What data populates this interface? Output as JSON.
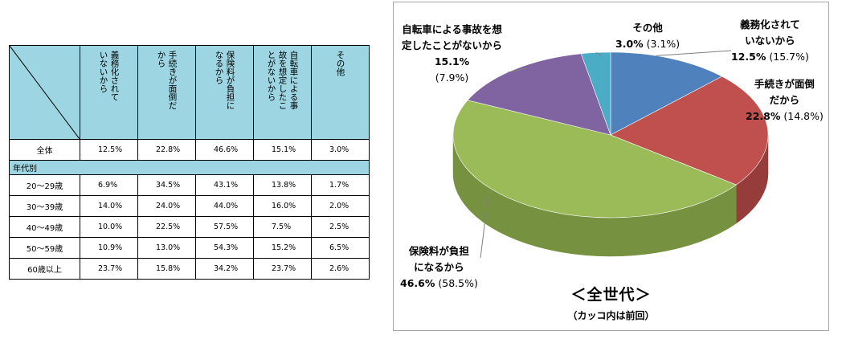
{
  "table": {
    "headers": [
      "義務化されていないから",
      "手続きが面倒だから",
      "保険料が負担になるから",
      "自転車による事故を想定したことがないから",
      "その他"
    ],
    "header_lines": [
      "義務化されて\nいないから",
      "手続きが面倒だ\nから",
      "保険料が負担に\nなるから",
      "自転車による事\n故を想定したこ\nとがないから",
      "その他"
    ],
    "total_row": {
      "label": "全体",
      "values": [
        "12.5%",
        "22.8%",
        "46.6%",
        "15.1%",
        "3.0%"
      ]
    },
    "section_label": "年代別",
    "rows": [
      {
        "label": "20～29歳",
        "values": [
          "6.9%",
          "34.5%",
          "43.1%",
          "13.8%",
          "1.7%"
        ]
      },
      {
        "label": "30～39歳",
        "values": [
          "14.0%",
          "24.0%",
          "44.0%",
          "16.0%",
          "2.0%"
        ]
      },
      {
        "label": "40～49歳",
        "values": [
          "10.0%",
          "22.5%",
          "57.5%",
          "7.5%",
          "2.5%"
        ]
      },
      {
        "label": "50～59歳",
        "values": [
          "10.9%",
          "13.0%",
          "54.3%",
          "15.2%",
          "6.5%"
        ]
      },
      {
        "label": "60歳以上",
        "values": [
          "23.7%",
          "15.8%",
          "34.2%",
          "23.7%",
          "2.6%"
        ]
      }
    ]
  },
  "chart_data": {
    "type": "pie",
    "title": "＜全世代＞",
    "note": "（カッコ内は前回）",
    "slices": [
      {
        "label_lines": [
          "義務化されて",
          "いないから"
        ],
        "value": 12.5,
        "value_text": "12.5%",
        "previous_text": "(15.7%)",
        "color": "#4f81bd",
        "side": "#3a6290"
      },
      {
        "label_lines": [
          "手続きが面倒",
          "だから"
        ],
        "value": 22.8,
        "value_text": "22.8%",
        "previous_text": "(14.8%)",
        "color": "#c0504d",
        "side": "#963c3a"
      },
      {
        "label_lines": [
          "保険料が負担",
          "になるから"
        ],
        "value": 46.6,
        "value_text": "46.6%",
        "previous_text": "(58.5%)",
        "color": "#9bbb59",
        "side": "#76913f"
      },
      {
        "label_lines": [
          "自転車による事故を想",
          "定したことがないから"
        ],
        "value": 15.1,
        "value_text": "15.1%",
        "previous_text": "(7.9%)",
        "color": "#8064a2",
        "side": "#5f4a7a"
      },
      {
        "label_lines": [
          "その他"
        ],
        "value": 3.0,
        "value_text": "3.0%",
        "previous_text": "(3.1%)",
        "color": "#4bacc6",
        "side": "#3a8698"
      }
    ]
  }
}
